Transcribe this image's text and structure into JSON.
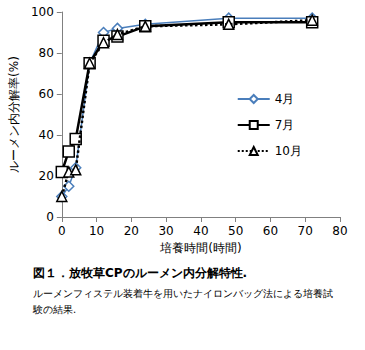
{
  "chart_data": {
    "type": "line",
    "title": "図１．放牧草CPのルーメン内分解特性.",
    "subtitle": "ルーメンフィステル装着牛を用いたナイロンバッグ法による培養試験の結果.",
    "x_label": "培養時間(時間)",
    "y_label": "ルーメン内分解率(%)",
    "x": [
      0,
      2,
      4,
      8,
      12,
      16,
      24,
      48,
      72
    ],
    "series": [
      {
        "name": "4月",
        "color": "#4a7ebb",
        "marker": "diamond",
        "line_style": "solid",
        "values": [
          10,
          15,
          24,
          75,
          90,
          92,
          94,
          97,
          97
        ]
      },
      {
        "name": "7月",
        "color": "#000000",
        "marker": "square",
        "line_style": "solid",
        "values": [
          22,
          32,
          38,
          75,
          86,
          88,
          93,
          95,
          95
        ]
      },
      {
        "name": "10月",
        "color": "#000000",
        "marker": "triangle",
        "line_style": "dotted",
        "values": [
          10,
          22,
          23,
          75,
          85,
          89,
          93,
          94,
          96
        ]
      }
    ],
    "xlim": [
      0,
      80
    ],
    "xticks": [
      0,
      10,
      20,
      30,
      40,
      50,
      60,
      70,
      80
    ],
    "ylim": [
      0,
      100
    ],
    "yticks": [
      0,
      20,
      40,
      60,
      80,
      100
    ],
    "grid": false,
    "legend": "right"
  }
}
